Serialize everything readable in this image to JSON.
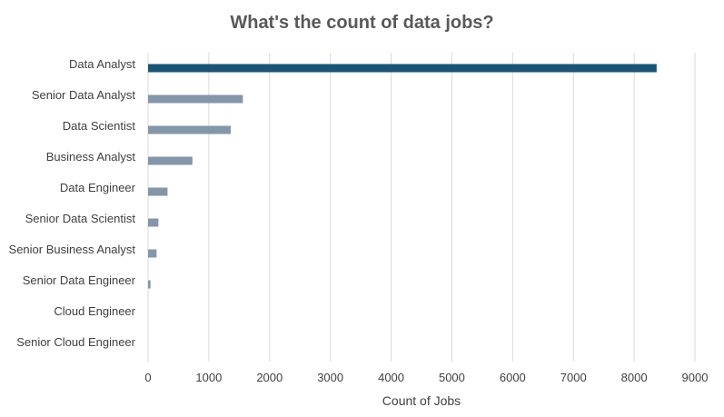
{
  "chart_data": {
    "type": "bar",
    "orientation": "horizontal",
    "title": "What's the count of data jobs?",
    "xlabel": "Count of Jobs",
    "ylabel": "",
    "categories": [
      "Data Analyst",
      "Senior Data Analyst",
      "Data Scientist",
      "Business Analyst",
      "Data Engineer",
      "Senior Data Scientist",
      "Senior Business Analyst",
      "Senior Data Engineer",
      "Cloud Engineer",
      "Senior Cloud Engineer"
    ],
    "values": [
      8370,
      1560,
      1360,
      730,
      320,
      170,
      140,
      40,
      0,
      0
    ],
    "xlim": [
      0,
      9000
    ],
    "x_ticks": [
      "0",
      "1000",
      "2000",
      "3000",
      "4000",
      "5000",
      "6000",
      "7000",
      "8000",
      "9000"
    ],
    "grid": "vertical",
    "legend": "none",
    "colors": {
      "highlight": "#1a5474",
      "default": "#8496a9",
      "grid": "#d9d9d9",
      "title": "#595959"
    }
  }
}
